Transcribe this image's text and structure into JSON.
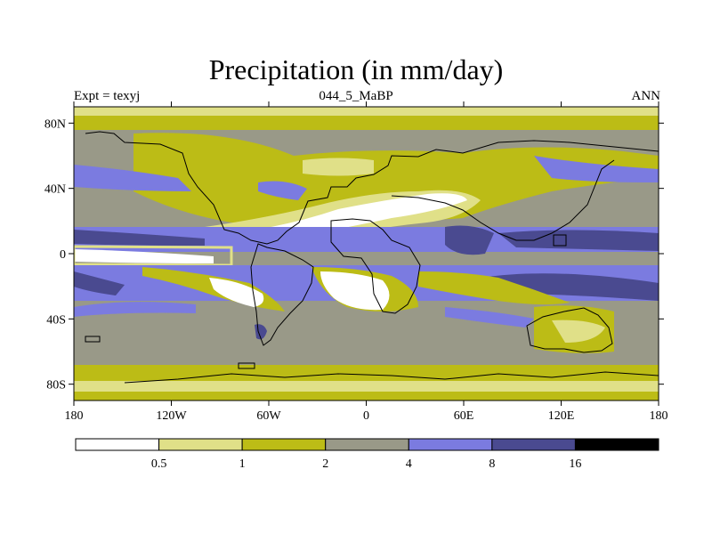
{
  "title": "Precipitation (in mm/day)",
  "subtitle_left": "Expt = texyj",
  "subtitle_center": "044_5_MaBP",
  "subtitle_right": "ANN",
  "lat_ticks": [
    {
      "label": "80N",
      "value": 80
    },
    {
      "label": "40N",
      "value": 40
    },
    {
      "label": "0",
      "value": 0
    },
    {
      "label": "40S",
      "value": -40
    },
    {
      "label": "80S",
      "value": -80
    }
  ],
  "lon_ticks": [
    {
      "label": "180",
      "value": -180
    },
    {
      "label": "120W",
      "value": -120
    },
    {
      "label": "60W",
      "value": -60
    },
    {
      "label": "0",
      "value": 0
    },
    {
      "label": "60E",
      "value": 60
    },
    {
      "label": "120E",
      "value": 120
    },
    {
      "label": "180",
      "value": 180
    }
  ],
  "colorbar": {
    "colors": [
      "#ffffff",
      "#e0e088",
      "#bcbc16",
      "#999988",
      "#7b7be0",
      "#4a4a90",
      "#000000"
    ],
    "labels": [
      "0.5",
      "1",
      "2",
      "4",
      "8",
      "16"
    ]
  }
}
